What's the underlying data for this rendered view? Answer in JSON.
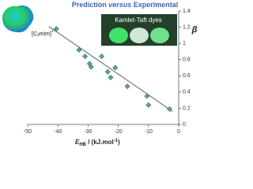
{
  "chart_data": {
    "type": "scatter",
    "title": [
      "Prediction ",
      "versus",
      " Experimental"
    ],
    "annotation": [
      "[C",
      "2",
      "mim]",
      "+"
    ],
    "image_caption": "Kamlet-Taft dyes",
    "x_label": [
      "E",
      "HB",
      " / (kJ.mol",
      "-1",
      ")"
    ],
    "y_label": "β",
    "x": [
      -40.5,
      -33,
      -31,
      -29.5,
      -29,
      -25.5,
      -23.5,
      -22.5,
      -21,
      -17,
      -10.5,
      -10,
      -3
    ],
    "y": [
      1.18,
      0.92,
      0.84,
      0.75,
      0.71,
      0.84,
      0.65,
      0.58,
      0.7,
      0.47,
      0.35,
      0.24,
      0.19
    ],
    "color": "#5aa8a4",
    "trend_line": {
      "x": [
        -43,
        -2
      ],
      "y": [
        1.21,
        0.16
      ],
      "color": "#666"
    },
    "xlim": [
      -50,
      0
    ],
    "xticks": [
      -50,
      -40,
      -30,
      -20,
      -10,
      0
    ],
    "ylim": [
      0,
      1.4
    ],
    "yticks": [
      0,
      0.2,
      0.4,
      0.6,
      0.8,
      1,
      1.2,
      1.4
    ]
  }
}
